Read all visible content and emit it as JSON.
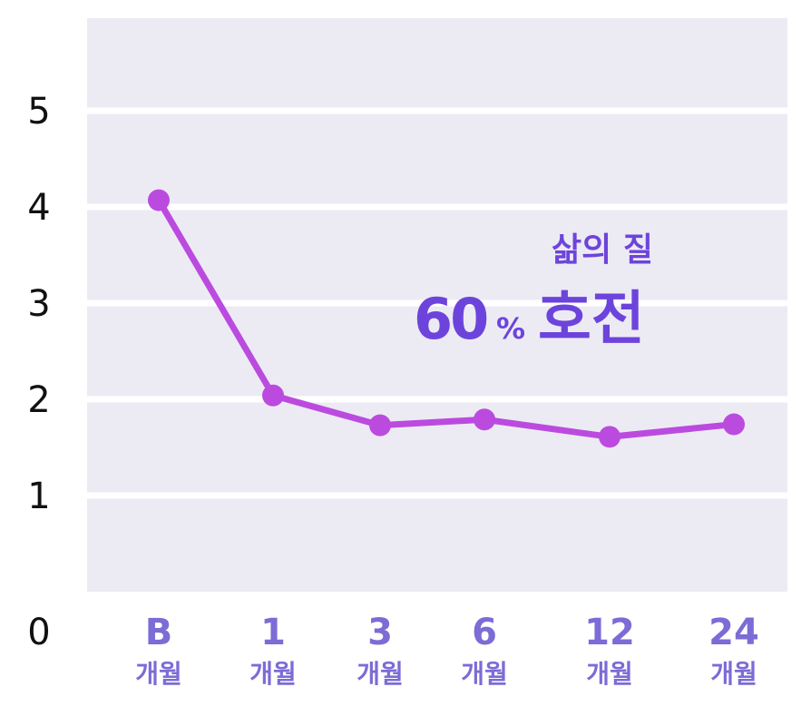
{
  "chart_data": {
    "type": "line",
    "categories": [
      "B",
      "1",
      "3",
      "6",
      "12",
      "24"
    ],
    "category_sublabels": [
      "개월",
      "개월",
      "개월",
      "개월",
      "개월",
      "개월"
    ],
    "values": [
      4.07,
      2.04,
      1.73,
      1.79,
      1.61,
      1.74
    ],
    "y_ticks": [
      "0",
      "1",
      "2",
      "3",
      "4",
      "5"
    ],
    "ylim": [
      0,
      5.95
    ],
    "grid": true,
    "annotation": {
      "line1": "삶의 질",
      "percent_number": "60",
      "percent_sign": "%",
      "word": "호전"
    },
    "colors": {
      "plot_bg": "#ECEBF4",
      "grid": "#ffffff",
      "line": "#BB4BDF",
      "x_labels": "#7B6CD6",
      "annotation": "#6D44DB",
      "y_labels": "#111111"
    }
  }
}
